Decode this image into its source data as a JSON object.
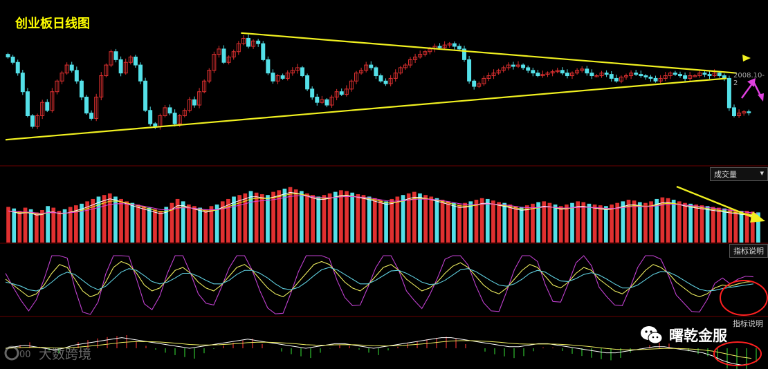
{
  "title": "创业板日线图",
  "labels": {
    "volume": "成交量",
    "indicator_help_1": "指标说明",
    "indicator_help_2": "指标说明",
    "price_tag": "2008.10-2"
  },
  "watermarks": {
    "right_brand": "曙乾金服",
    "left_brand": "大数跨境"
  },
  "colors": {
    "up": "#e03030",
    "down": "#54e0e8",
    "trendline": "#f0f020",
    "annotation": "#e040e0",
    "circle": "#ff2020",
    "grid": "#6a0000"
  },
  "chart_data": {
    "type": "candlestick",
    "panels": [
      "price",
      "volume",
      "kdj",
      "macd"
    ],
    "price_closes": [
      2210,
      2190,
      2150,
      2080,
      1990,
      1950,
      1990,
      2040,
      2010,
      2080,
      2120,
      2150,
      2180,
      2160,
      2120,
      2060,
      2000,
      1980,
      2060,
      2140,
      2180,
      2230,
      2200,
      2150,
      2190,
      2210,
      2180,
      2120,
      2010,
      1960,
      1950,
      1990,
      2020,
      2000,
      1960,
      1990,
      2010,
      2050,
      2030,
      2080,
      2120,
      2160,
      2220,
      2240,
      2190,
      2210,
      2230,
      2260,
      2280,
      2250,
      2270,
      2260,
      2200,
      2150,
      2120,
      2140,
      2130,
      2150,
      2160,
      2170,
      2140,
      2090,
      2060,
      2040,
      2050,
      2030,
      2060,
      2080,
      2070,
      2090,
      2120,
      2150,
      2160,
      2180,
      2170,
      2140,
      2120,
      2110,
      2130,
      2150,
      2170,
      2180,
      2200,
      2210,
      2220,
      2230,
      2240,
      2250,
      2245,
      2255,
      2260,
      2250,
      2240,
      2200,
      2120,
      2100,
      2110,
      2130,
      2140,
      2150,
      2160,
      2170,
      2180,
      2175,
      2180,
      2170,
      2160,
      2150,
      2140,
      2145,
      2150,
      2155,
      2160,
      2150,
      2140,
      2150,
      2160,
      2165,
      2150,
      2140,
      2140,
      2150,
      2145,
      2130,
      2120,
      2135,
      2140,
      2150,
      2145,
      2140,
      2135,
      2130,
      2120,
      2130,
      2140,
      2150,
      2145,
      2140,
      2130,
      2140,
      2140,
      2150,
      2145,
      2140,
      2150,
      2140,
      2130,
      2020,
      1990,
      2000,
      2005,
      2003
    ],
    "volume_values": [
      45,
      43,
      40,
      44,
      42,
      38,
      41,
      46,
      44,
      40,
      42,
      45,
      47,
      49,
      52,
      55,
      58,
      60,
      62,
      58,
      55,
      52,
      50,
      48,
      46,
      44,
      42,
      40,
      45,
      50,
      55,
      52,
      48,
      46,
      44,
      42,
      46,
      48,
      52,
      55,
      58,
      60,
      62,
      65,
      63,
      61,
      60,
      64,
      66,
      68,
      70,
      67,
      65,
      62,
      60,
      58,
      60,
      62,
      64,
      66,
      65,
      63,
      61,
      60,
      58,
      56,
      54,
      52,
      55,
      58,
      60,
      62,
      64,
      62,
      60,
      58,
      56,
      54,
      52,
      50,
      48,
      50,
      52,
      54,
      56,
      55,
      53,
      51,
      50,
      48,
      46,
      45,
      47,
      49,
      51,
      52,
      50,
      48,
      46,
      48,
      50,
      52,
      51,
      49,
      48,
      47,
      46,
      48,
      50,
      52,
      54,
      53,
      51,
      50,
      52,
      55,
      57,
      56,
      54,
      52,
      50,
      49,
      48,
      47,
      46,
      45,
      44,
      43,
      42,
      41,
      40,
      40,
      39,
      38
    ],
    "kdj_k": [
      60,
      50,
      40,
      30,
      35,
      50,
      70,
      85,
      80,
      60,
      40,
      30,
      35,
      55,
      80,
      90,
      85,
      70,
      50,
      40,
      45,
      60,
      75,
      80,
      70,
      55,
      45,
      40,
      50,
      65,
      80,
      85,
      75,
      60,
      45,
      35,
      30,
      40,
      55,
      70,
      85,
      90,
      85,
      70,
      55,
      45,
      40,
      50,
      65,
      80,
      85,
      75,
      60,
      50,
      40,
      45,
      55,
      70,
      82,
      88,
      80,
      65,
      50,
      40,
      35,
      45,
      60,
      75,
      85,
      80,
      65,
      50,
      45,
      55,
      70,
      80,
      75,
      60,
      50,
      40,
      35,
      45,
      60,
      75,
      85,
      80,
      70,
      55,
      45,
      35,
      30,
      35,
      45,
      50,
      48,
      52,
      55,
      56
    ],
    "kdj_d": [
      55,
      52,
      48,
      42,
      40,
      45,
      55,
      66,
      72,
      68,
      58,
      48,
      42,
      48,
      60,
      72,
      78,
      75,
      66,
      56,
      52,
      55,
      62,
      70,
      70,
      65,
      58,
      52,
      52,
      58,
      68,
      75,
      75,
      70,
      62,
      52,
      44,
      42,
      46,
      55,
      66,
      76,
      80,
      76,
      68,
      60,
      52,
      52,
      58,
      66,
      74,
      75,
      70,
      63,
      55,
      51,
      52,
      58,
      67,
      76,
      78,
      73,
      65,
      57,
      50,
      48,
      52,
      60,
      70,
      75,
      72,
      64,
      57,
      56,
      61,
      68,
      71,
      67,
      60,
      52,
      45,
      45,
      50,
      59,
      68,
      73,
      72,
      66,
      58,
      50,
      43,
      40,
      41,
      44,
      46,
      48,
      50,
      52
    ],
    "macd_dif": [
      0,
      1,
      2,
      1,
      0,
      -1,
      0,
      2,
      3,
      4,
      5,
      6,
      7,
      6,
      5,
      4,
      3,
      2,
      1,
      0,
      1,
      2,
      3,
      4,
      5,
      6,
      5,
      4,
      3,
      2,
      1,
      0,
      1,
      2,
      3,
      3,
      2,
      1,
      0,
      1,
      2,
      3,
      4,
      5,
      6,
      7,
      7,
      6,
      5,
      4,
      3,
      2,
      1,
      1,
      2,
      3,
      3,
      2,
      1,
      0,
      -1,
      -2,
      -3,
      -3,
      -2,
      -1,
      0,
      1,
      1,
      0,
      -1,
      -2,
      -3,
      -5,
      -8,
      -10,
      -11,
      -10
    ],
    "trendlines": [
      {
        "name": "upper",
        "from_date_index": 48,
        "to_date_index": 149,
        "from_value": 2300,
        "to_value": 2150,
        "color": "#f0f020"
      },
      {
        "name": "lower",
        "from_date_index": 0,
        "to_date_index": 147,
        "from_value": 1900,
        "to_value": 2130,
        "color": "#f0f020"
      }
    ]
  }
}
